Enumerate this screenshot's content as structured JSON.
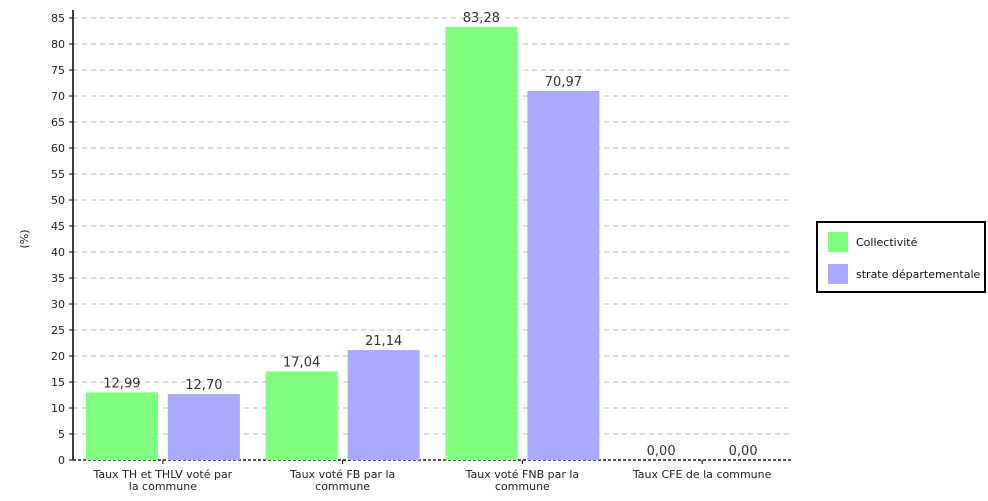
{
  "chart_data": {
    "type": "bar",
    "ylabel": "(%)",
    "ylim": [
      0,
      85
    ],
    "yticks": [
      0,
      5,
      10,
      15,
      20,
      25,
      30,
      35,
      40,
      45,
      50,
      55,
      60,
      65,
      70,
      75,
      80,
      85
    ],
    "grid": true,
    "legend_position": "right",
    "categories": [
      "Taux TH et THLV voté par la commune",
      "Taux voté FB par la commune",
      "Taux voté FNB par la commune",
      "Taux CFE de la commune"
    ],
    "series": [
      {
        "name": "Collectivité",
        "color": "#80ff80",
        "values": [
          12.99,
          17.04,
          83.28,
          0.0
        ],
        "labels": [
          "12,99",
          "17,04",
          "83,28",
          "0,00"
        ]
      },
      {
        "name": "strate départementale",
        "color": "#aaaaff",
        "values": [
          12.7,
          21.14,
          70.97,
          0.0
        ],
        "labels": [
          "12,70",
          "21,14",
          "70,97",
          "0,00"
        ]
      }
    ]
  }
}
